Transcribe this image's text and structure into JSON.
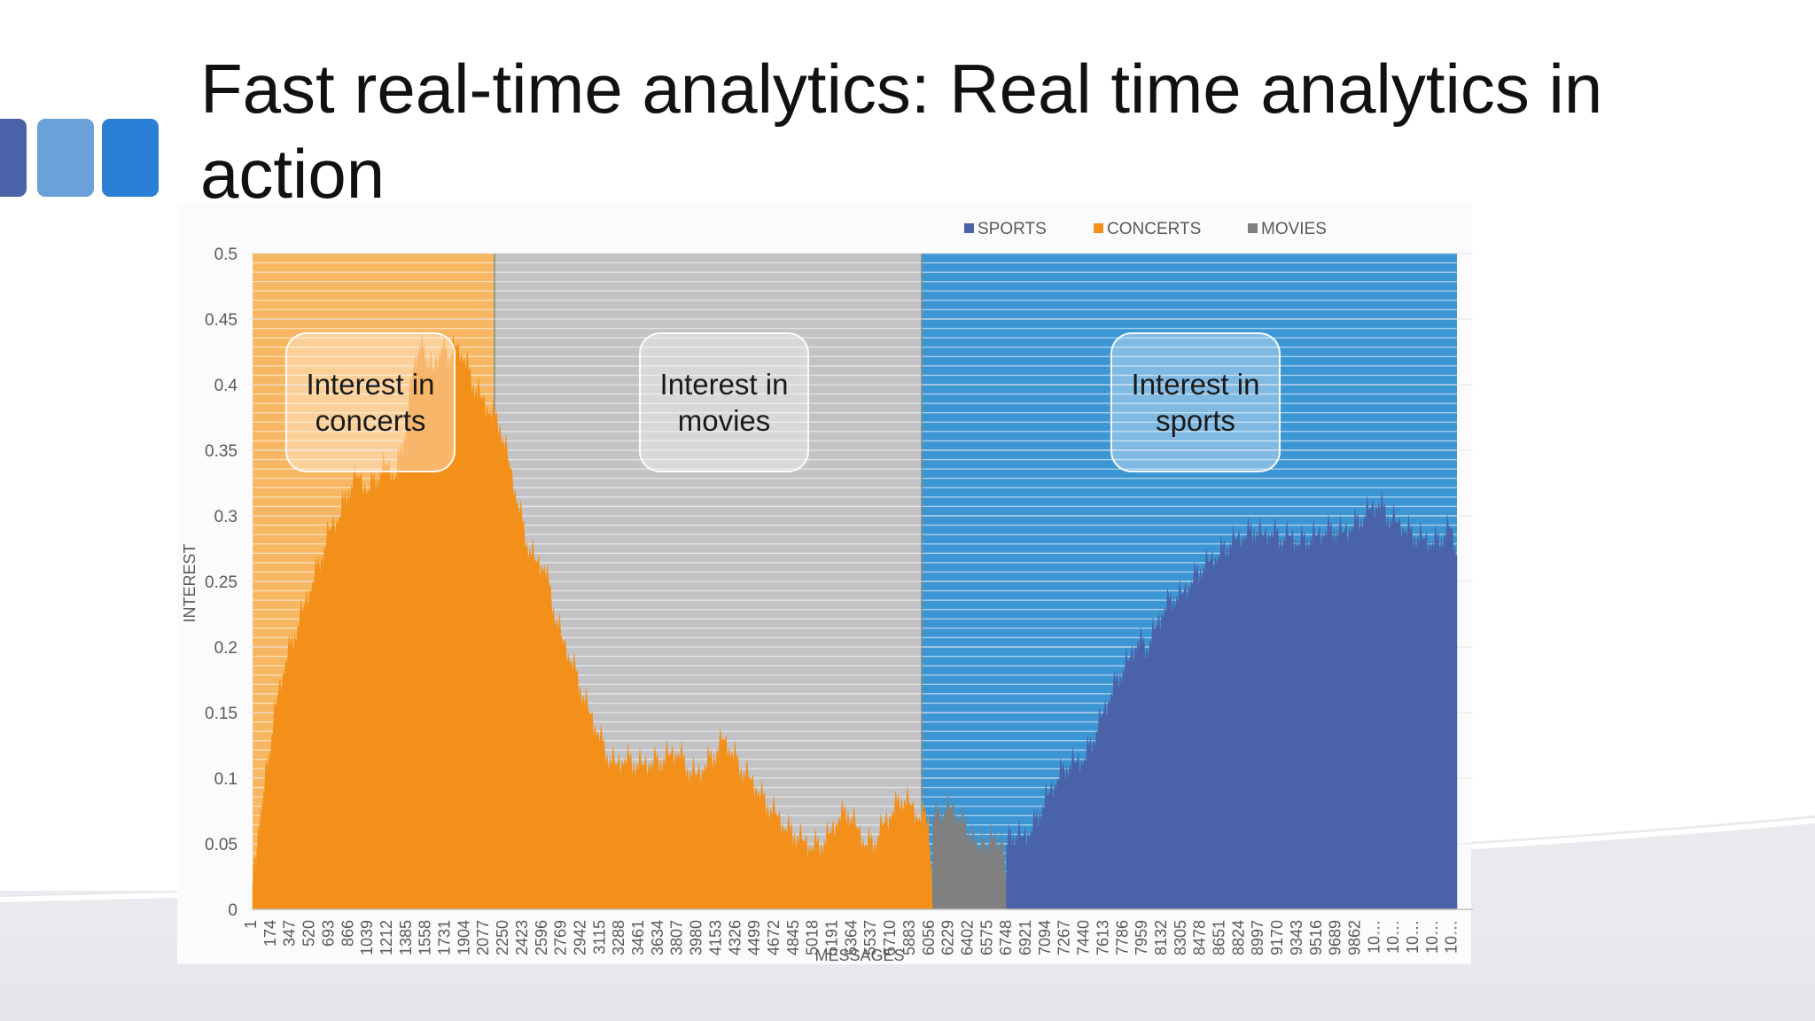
{
  "slide": {
    "title": "Fast real-time analytics: Real time analytics in action"
  },
  "callouts": {
    "concerts": "Interest in concerts",
    "movies": "Interest in movies",
    "sports": "Interest in sports"
  },
  "legend": [
    {
      "label": "SPORTS",
      "color": "#4a63a8"
    },
    {
      "label": "CONCERTS",
      "color": "#f39019"
    },
    {
      "label": "MOVIES",
      "color": "#808080"
    }
  ],
  "chart_data": {
    "type": "area",
    "xlabel": "MESSAGES",
    "ylabel": "INTEREST",
    "ylim": [
      0,
      0.5
    ],
    "yticks": [
      0,
      0.05,
      0.1,
      0.15,
      0.2,
      0.25,
      0.3,
      0.35,
      0.4,
      0.45,
      0.5
    ],
    "ytick_labels": [
      "0",
      "0.05",
      "0.1",
      "0.15",
      "0.2",
      "0.25",
      "0.3",
      "0.35",
      "0.4",
      "0.45",
      "0.5"
    ],
    "xtick_labels": [
      "1",
      "174",
      "347",
      "520",
      "693",
      "866",
      "1039",
      "1212",
      "1385",
      "1558",
      "1731",
      "1904",
      "2077",
      "2250",
      "2423",
      "2596",
      "2769",
      "2942",
      "3115",
      "3288",
      "3461",
      "3634",
      "3807",
      "3980",
      "4153",
      "4326",
      "4499",
      "4672",
      "4845",
      "5018",
      "5191",
      "5364",
      "5537",
      "5710",
      "5883",
      "6056",
      "6229",
      "6402",
      "6575",
      "6748",
      "6921",
      "7094",
      "7267",
      "7440",
      "7613",
      "7786",
      "7959",
      "8132",
      "8305",
      "8478",
      "8651",
      "8824",
      "8997",
      "9170",
      "9343",
      "9516",
      "9689",
      "9862",
      "10…",
      "10…",
      "10…",
      "10…",
      "10…"
    ],
    "background_bands": [
      {
        "name": "CONCERTS",
        "from_message": 1,
        "to_message": 2170,
        "color": "#f7b661"
      },
      {
        "name": "MOVIES",
        "from_message": 2170,
        "to_message": 6000,
        "color": "#c3c3c6"
      },
      {
        "name": "SPORTS",
        "from_message": 6000,
        "to_message": 10800,
        "color": "#3d96d4"
      }
    ],
    "x_range": [
      1,
      10800
    ],
    "series": [
      {
        "name": "CONCERTS",
        "color": "#f39019",
        "points": [
          [
            1,
            0.02
          ],
          [
            30,
            0.04
          ],
          [
            60,
            0.06
          ],
          [
            100,
            0.09
          ],
          [
            150,
            0.12
          ],
          [
            220,
            0.16
          ],
          [
            300,
            0.19
          ],
          [
            380,
            0.21
          ],
          [
            460,
            0.23
          ],
          [
            540,
            0.25
          ],
          [
            620,
            0.27
          ],
          [
            700,
            0.29
          ],
          [
            780,
            0.3
          ],
          [
            860,
            0.32
          ],
          [
            940,
            0.33
          ],
          [
            1040,
            0.32
          ],
          [
            1120,
            0.33
          ],
          [
            1200,
            0.34
          ],
          [
            1280,
            0.33
          ],
          [
            1360,
            0.36
          ],
          [
            1440,
            0.41
          ],
          [
            1500,
            0.43
          ],
          [
            1560,
            0.42
          ],
          [
            1620,
            0.41
          ],
          [
            1700,
            0.43
          ],
          [
            1760,
            0.42
          ],
          [
            1820,
            0.43
          ],
          [
            1900,
            0.42
          ],
          [
            1980,
            0.4
          ],
          [
            2050,
            0.39
          ],
          [
            2130,
            0.38
          ],
          [
            2220,
            0.37
          ],
          [
            2300,
            0.34
          ],
          [
            2380,
            0.31
          ],
          [
            2460,
            0.28
          ],
          [
            2540,
            0.265
          ],
          [
            2620,
            0.262
          ],
          [
            2700,
            0.23
          ],
          [
            2780,
            0.205
          ],
          [
            2860,
            0.19
          ],
          [
            2940,
            0.17
          ],
          [
            3020,
            0.15
          ],
          [
            3100,
            0.135
          ],
          [
            3180,
            0.118
          ],
          [
            3260,
            0.11
          ],
          [
            3340,
            0.115
          ],
          [
            3420,
            0.112
          ],
          [
            3500,
            0.11
          ],
          [
            3580,
            0.112
          ],
          [
            3660,
            0.114
          ],
          [
            3740,
            0.118
          ],
          [
            3820,
            0.12
          ],
          [
            3900,
            0.108
          ],
          [
            3980,
            0.102
          ],
          [
            4060,
            0.11
          ],
          [
            4140,
            0.118
          ],
          [
            4220,
            0.13
          ],
          [
            4300,
            0.12
          ],
          [
            4380,
            0.108
          ],
          [
            4460,
            0.1
          ],
          [
            4540,
            0.09
          ],
          [
            4620,
            0.08
          ],
          [
            4700,
            0.072
          ],
          [
            4780,
            0.062
          ],
          [
            4860,
            0.058
          ],
          [
            4940,
            0.052
          ],
          [
            5020,
            0.048
          ],
          [
            5100,
            0.05
          ],
          [
            5180,
            0.058
          ],
          [
            5260,
            0.07
          ],
          [
            5340,
            0.075
          ],
          [
            5420,
            0.062
          ],
          [
            5500,
            0.05
          ],
          [
            5580,
            0.052
          ],
          [
            5660,
            0.065
          ],
          [
            5740,
            0.075
          ],
          [
            5820,
            0.085
          ],
          [
            5900,
            0.08
          ],
          [
            5980,
            0.07
          ],
          [
            6060,
            0.072
          ],
          [
            6100,
            0
          ]
        ]
      },
      {
        "name": "MOVIES",
        "color": "#808080",
        "points": [
          [
            6100,
            0.07
          ],
          [
            6180,
            0.075
          ],
          [
            6260,
            0.078
          ],
          [
            6340,
            0.07
          ],
          [
            6420,
            0.06
          ],
          [
            6480,
            0.05
          ],
          [
            6520,
            0.048
          ],
          [
            6580,
            0.05
          ],
          [
            6640,
            0.055
          ],
          [
            6700,
            0.05
          ],
          [
            6740,
            0.045
          ],
          [
            6760,
            0
          ]
        ]
      },
      {
        "name": "SPORTS",
        "color": "#4a63a8",
        "points": [
          [
            6760,
            0.05
          ],
          [
            6820,
            0.058
          ],
          [
            6900,
            0.055
          ],
          [
            6980,
            0.06
          ],
          [
            7060,
            0.075
          ],
          [
            7140,
            0.088
          ],
          [
            7220,
            0.1
          ],
          [
            7300,
            0.11
          ],
          [
            7380,
            0.112
          ],
          [
            7460,
            0.115
          ],
          [
            7540,
            0.13
          ],
          [
            7620,
            0.148
          ],
          [
            7700,
            0.165
          ],
          [
            7780,
            0.18
          ],
          [
            7860,
            0.19
          ],
          [
            7940,
            0.205
          ],
          [
            8020,
            0.2
          ],
          [
            8100,
            0.215
          ],
          [
            8180,
            0.23
          ],
          [
            8260,
            0.238
          ],
          [
            8340,
            0.24
          ],
          [
            8420,
            0.25
          ],
          [
            8500,
            0.26
          ],
          [
            8580,
            0.265
          ],
          [
            8660,
            0.27
          ],
          [
            8740,
            0.278
          ],
          [
            8820,
            0.282
          ],
          [
            8900,
            0.285
          ],
          [
            8980,
            0.29
          ],
          [
            9060,
            0.285
          ],
          [
            9140,
            0.288
          ],
          [
            9220,
            0.283
          ],
          [
            9300,
            0.285
          ],
          [
            9380,
            0.28
          ],
          [
            9460,
            0.283
          ],
          [
            9540,
            0.285
          ],
          [
            9620,
            0.288
          ],
          [
            9700,
            0.29
          ],
          [
            9780,
            0.287
          ],
          [
            9860,
            0.292
          ],
          [
            9940,
            0.298
          ],
          [
            10020,
            0.305
          ],
          [
            10100,
            0.31
          ],
          [
            10180,
            0.3
          ],
          [
            10260,
            0.295
          ],
          [
            10340,
            0.29
          ],
          [
            10420,
            0.285
          ],
          [
            10500,
            0.282
          ],
          [
            10580,
            0.28
          ],
          [
            10660,
            0.283
          ],
          [
            10740,
            0.292
          ],
          [
            10800,
            0.27
          ]
        ]
      }
    ]
  }
}
